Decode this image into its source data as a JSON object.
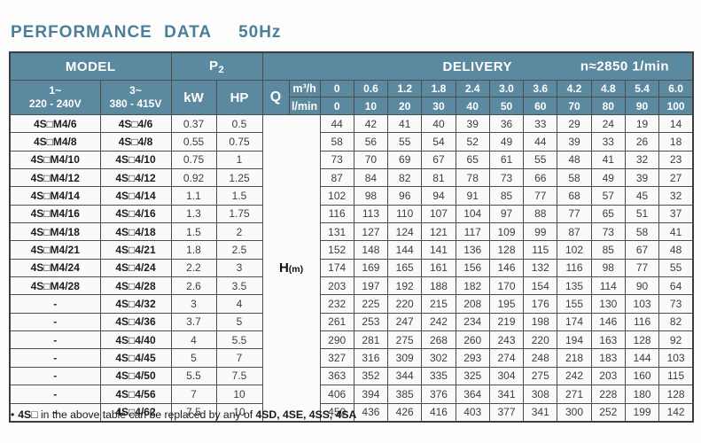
{
  "title": "PERFORMANCE DATA",
  "frequency": "50Hz",
  "table": {
    "header": {
      "model": "MODEL",
      "p2_base": "P",
      "p2_sub": "2",
      "delivery": "DELIVERY",
      "speed": "n≈2850 1/min",
      "phase1_line1": "1~",
      "phase1_line2": "220 - 240V",
      "phase3_line1": "3~",
      "phase3_line2": "380 - 415V",
      "kw": "kW",
      "hp": "HP",
      "q": "Q",
      "unit_m3h": "m³/h",
      "unit_lmin": "l/min",
      "flow_m3h": [
        "0",
        "0.6",
        "1.2",
        "1.8",
        "2.4",
        "3.0",
        "3.6",
        "4.2",
        "4.8",
        "5.4",
        "6.0"
      ],
      "flow_lmin": [
        "0",
        "10",
        "20",
        "30",
        "40",
        "50",
        "60",
        "70",
        "80",
        "90",
        "100"
      ]
    },
    "h_label": {
      "base": "H",
      "sub": "(m)"
    },
    "rows": [
      {
        "m1": "4S□M4/6",
        "m3": "4S□4/6",
        "kw": "0.37",
        "hp": "0.5",
        "h": [
          44,
          42,
          41,
          40,
          39,
          36,
          33,
          29,
          24,
          19,
          14
        ]
      },
      {
        "m1": "4S□M4/8",
        "m3": "4S□4/8",
        "kw": "0.55",
        "hp": "0.75",
        "h": [
          58,
          56,
          55,
          54,
          52,
          49,
          44,
          39,
          33,
          26,
          18
        ]
      },
      {
        "m1": "4S□M4/10",
        "m3": "4S□4/10",
        "kw": "0.75",
        "hp": "1",
        "h": [
          73,
          70,
          69,
          67,
          65,
          61,
          55,
          48,
          41,
          32,
          23
        ]
      },
      {
        "m1": "4S□M4/12",
        "m3": "4S□4/12",
        "kw": "0.92",
        "hp": "1.25",
        "h": [
          87,
          84,
          82,
          81,
          78,
          73,
          66,
          58,
          49,
          39,
          27
        ]
      },
      {
        "m1": "4S□M4/14",
        "m3": "4S□4/14",
        "kw": "1.1",
        "hp": "1.5",
        "h": [
          102,
          98,
          96,
          94,
          91,
          85,
          77,
          68,
          57,
          45,
          32
        ]
      },
      {
        "m1": "4S□M4/16",
        "m3": "4S□4/16",
        "kw": "1.3",
        "hp": "1.75",
        "h": [
          116,
          113,
          110,
          107,
          104,
          97,
          88,
          77,
          65,
          51,
          37
        ]
      },
      {
        "m1": "4S□M4/18",
        "m3": "4S□4/18",
        "kw": "1.5",
        "hp": "2",
        "h": [
          131,
          127,
          124,
          121,
          117,
          109,
          99,
          87,
          73,
          58,
          41
        ]
      },
      {
        "m1": "4S□M4/21",
        "m3": "4S□4/21",
        "kw": "1.8",
        "hp": "2.5",
        "h": [
          152,
          148,
          144,
          141,
          136,
          128,
          115,
          102,
          85,
          67,
          48
        ]
      },
      {
        "m1": "4S□M4/24",
        "m3": "4S□4/24",
        "kw": "2.2",
        "hp": "3",
        "h": [
          174,
          169,
          165,
          161,
          156,
          146,
          132,
          116,
          98,
          77,
          55
        ]
      },
      {
        "m1": "4S□M4/28",
        "m3": "4S□4/28",
        "kw": "2.6",
        "hp": "3.5",
        "h": [
          203,
          197,
          192,
          188,
          182,
          170,
          154,
          135,
          114,
          90,
          64
        ]
      },
      {
        "m1": "-",
        "m3": "4S□4/32",
        "kw": "3",
        "hp": "4",
        "h": [
          232,
          225,
          220,
          215,
          208,
          195,
          176,
          155,
          130,
          103,
          73
        ]
      },
      {
        "m1": "-",
        "m3": "4S□4/36",
        "kw": "3.7",
        "hp": "5",
        "h": [
          261,
          253,
          247,
          242,
          234,
          219,
          198,
          174,
          146,
          116,
          82
        ]
      },
      {
        "m1": "-",
        "m3": "4S□4/40",
        "kw": "4",
        "hp": "5.5",
        "h": [
          290,
          281,
          275,
          268,
          260,
          243,
          220,
          194,
          163,
          128,
          92
        ]
      },
      {
        "m1": "-",
        "m3": "4S□4/45",
        "kw": "5",
        "hp": "7",
        "h": [
          327,
          316,
          309,
          302,
          293,
          274,
          248,
          218,
          183,
          144,
          103
        ]
      },
      {
        "m1": "-",
        "m3": "4S□4/50",
        "kw": "5.5",
        "hp": "7.5",
        "h": [
          363,
          352,
          344,
          335,
          325,
          304,
          275,
          242,
          203,
          160,
          115
        ]
      },
      {
        "m1": "-",
        "m3": "4S□4/56",
        "kw": "7",
        "hp": "10",
        "h": [
          406,
          394,
          385,
          376,
          364,
          341,
          308,
          271,
          228,
          180,
          128
        ]
      },
      {
        "m1": "-",
        "m3": "4S□4/62",
        "kw": "7.5",
        "hp": "10",
        "h": [
          450,
          436,
          426,
          416,
          403,
          377,
          341,
          300,
          252,
          199,
          142
        ]
      }
    ]
  },
  "footnote": {
    "bullet": "•",
    "bold1": "4S□",
    "text": " in the above table can be replaced by any of ",
    "bold2": "4SD, 4SE, 4SS, 4SA"
  }
}
